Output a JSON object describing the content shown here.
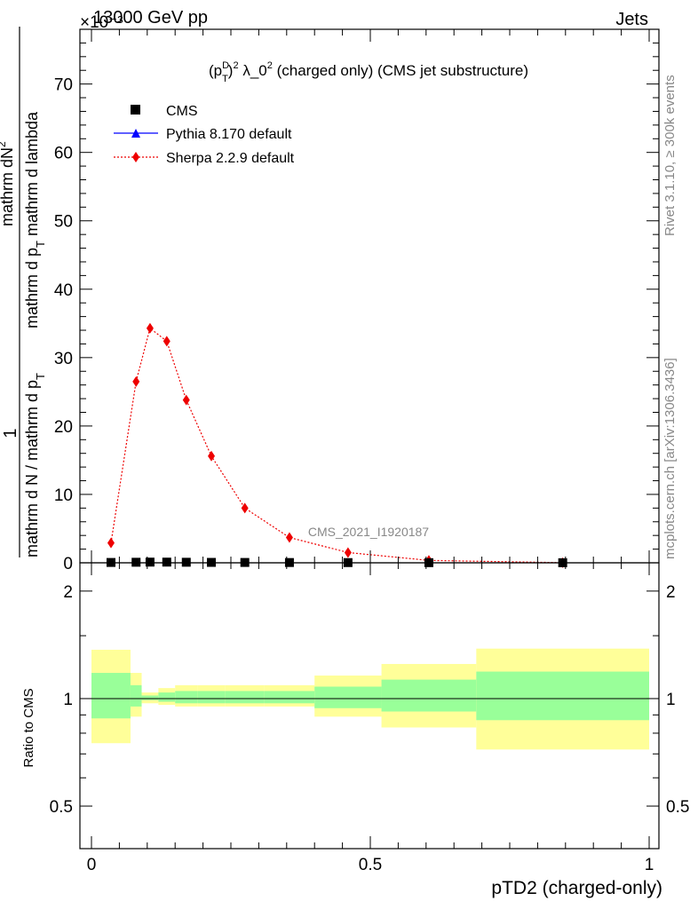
{
  "header": {
    "left": "13000 GeV pp",
    "right": "Jets",
    "exponent": "×10⁻³"
  },
  "side": {
    "rivet": "Rivet 3.1.10, ≥ 300k events",
    "mcplots": "mcplots.cern.ch [arXiv:1306.3436]"
  },
  "chart_data": {
    "type": "line",
    "title": "(p_T^D)^2 λ_0^2 (charged only) (CMS jet substructure)",
    "title_parts": {
      "p": "(p",
      "sup_d": "D",
      "sub_t": "T",
      "close": ")",
      "sup2": "2",
      "lam": " λ_0",
      "sup2b": "2",
      "rest": " (charged only) (CMS jet substructure)"
    },
    "analysis": "CMS_2021_I1920187",
    "xlabel": "pTD2 (charged-only)",
    "ylabel_main": {
      "top": "1",
      "num": "mathrm dN",
      "num_superscript": "2",
      "den": "mathrm d p",
      "den_sub": "T",
      "den_rest": " mathrm d lambda",
      "left": "mathrm d N / mathrm d p",
      "left_sub": "T"
    },
    "ylabel_ratio": "Ratio to CMS",
    "xlim": [
      0,
      1
    ],
    "ylim": [
      0,
      78
    ],
    "y_exponent": -3,
    "ratio_ylim": [
      0.38,
      2.4
    ],
    "x_ticks": [
      {
        "v": 0,
        "label": "0"
      },
      {
        "v": 0.5,
        "label": "0.5"
      },
      {
        "v": 1,
        "label": "1"
      }
    ],
    "y_ticks": [
      {
        "v": 0,
        "label": "0"
      },
      {
        "v": 10,
        "label": "10"
      },
      {
        "v": 20,
        "label": "20"
      },
      {
        "v": 30,
        "label": "30"
      },
      {
        "v": 40,
        "label": "40"
      },
      {
        "v": 50,
        "label": "50"
      },
      {
        "v": 60,
        "label": "60"
      },
      {
        "v": 70,
        "label": "70"
      }
    ],
    "ratio_ticks": [
      {
        "v": 0.5,
        "label": "0.5"
      },
      {
        "v": 1,
        "label": "1"
      },
      {
        "v": 2,
        "label": "2"
      }
    ],
    "bin_edges": [
      0,
      0.07,
      0.09,
      0.12,
      0.15,
      0.19,
      0.24,
      0.31,
      0.4,
      0.52,
      0.69,
      1.0
    ],
    "series": [
      {
        "name": "CMS",
        "marker": "square",
        "color": "#000000",
        "x": [
          0.035,
          0.08,
          0.105,
          0.135,
          0.17,
          0.215,
          0.275,
          0.355,
          0.46,
          0.605,
          0.845
        ],
        "y": [
          0.05,
          0.08,
          0.1,
          0.1,
          0.08,
          0.06,
          0.05,
          0.04,
          0.03,
          0.02,
          0.01
        ]
      },
      {
        "name": "Pythia 8.170 default",
        "marker": "triangle",
        "color": "#0000ff",
        "x": [],
        "y": []
      },
      {
        "name": "Sherpa 2.2.9 default",
        "marker": "diamond",
        "color": "#ee0000",
        "x": [
          0.035,
          0.08,
          0.105,
          0.135,
          0.17,
          0.215,
          0.275,
          0.355,
          0.46,
          0.605,
          0.845
        ],
        "y": [
          2.9,
          26.5,
          34.3,
          32.4,
          23.8,
          15.6,
          8.0,
          3.7,
          1.5,
          0.35,
          0.02
        ]
      }
    ],
    "ratio_bands": [
      {
        "x0": 0.0,
        "x1": 0.07,
        "y2lo": 0.75,
        "y2hi": 1.37,
        "y1lo": 0.88,
        "y1hi": 1.18
      },
      {
        "x0": 0.07,
        "x1": 0.09,
        "y2lo": 0.89,
        "y2hi": 1.18,
        "y1lo": 0.95,
        "y1hi": 1.09
      },
      {
        "x0": 0.09,
        "x1": 0.12,
        "y2lo": 0.97,
        "y2hi": 1.04,
        "y1lo": 0.99,
        "y1hi": 1.02
      },
      {
        "x0": 0.12,
        "x1": 0.15,
        "y2lo": 0.96,
        "y2hi": 1.07,
        "y1lo": 0.98,
        "y1hi": 1.04
      },
      {
        "x0": 0.15,
        "x1": 0.19,
        "y2lo": 0.95,
        "y2hi": 1.09,
        "y1lo": 0.97,
        "y1hi": 1.05
      },
      {
        "x0": 0.19,
        "x1": 0.24,
        "y2lo": 0.95,
        "y2hi": 1.09,
        "y1lo": 0.97,
        "y1hi": 1.05
      },
      {
        "x0": 0.24,
        "x1": 0.31,
        "y2lo": 0.95,
        "y2hi": 1.09,
        "y1lo": 0.97,
        "y1hi": 1.05
      },
      {
        "x0": 0.31,
        "x1": 0.4,
        "y2lo": 0.95,
        "y2hi": 1.09,
        "y1lo": 0.97,
        "y1hi": 1.05
      },
      {
        "x0": 0.4,
        "x1": 0.52,
        "y2lo": 0.89,
        "y2hi": 1.16,
        "y1lo": 0.94,
        "y1hi": 1.08
      },
      {
        "x0": 0.52,
        "x1": 0.69,
        "y2lo": 0.83,
        "y2hi": 1.25,
        "y1lo": 0.92,
        "y1hi": 1.13
      },
      {
        "x0": 0.69,
        "x1": 1.0,
        "y2lo": 0.72,
        "y2hi": 1.38,
        "y1lo": 0.87,
        "y1hi": 1.19
      }
    ],
    "colors": {
      "band_inner": "#99ff99",
      "band_outer": "#ffff99",
      "grey_text": "#888888"
    }
  }
}
